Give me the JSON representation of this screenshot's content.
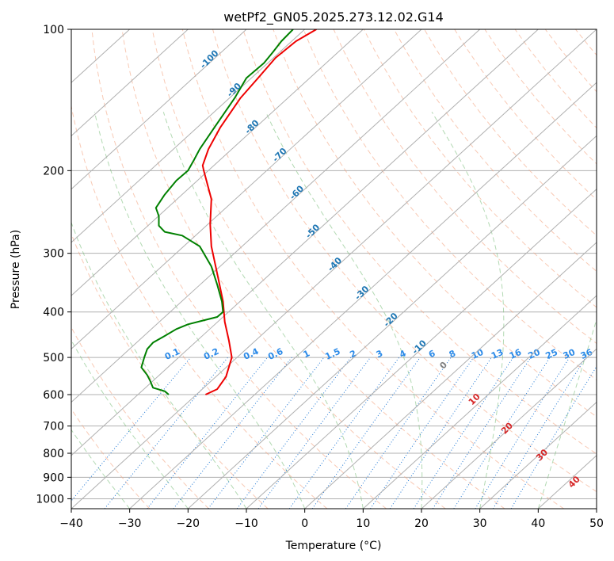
{
  "chart_data": {
    "type": "line",
    "title": "wetPf2_GN05.2025.273.12.02.G14",
    "xlabel": "Temperature (°C)",
    "ylabel": "Pressure (hPa)",
    "xlim": [
      -40,
      50
    ],
    "ylim": [
      1050,
      100
    ],
    "x_ticks": [
      -40,
      -30,
      -20,
      -10,
      0,
      10,
      20,
      30,
      40,
      50
    ],
    "x_tick_labels": [
      "−40",
      "−30",
      "−20",
      "−10",
      "0",
      "10",
      "20",
      "30",
      "40",
      "50"
    ],
    "y_ticks": [
      1000,
      900,
      800,
      700,
      600,
      500,
      400,
      300,
      200,
      100
    ],
    "y_tick_labels": [
      "1000",
      "900",
      "800",
      "700",
      "600",
      "500",
      "400",
      "300",
      "200",
      "100"
    ],
    "grid": true,
    "skew_temperature": [
      -60,
      -50,
      -40,
      -30,
      -20,
      -10,
      0,
      10,
      20,
      30,
      40,
      50
    ],
    "series": [
      {
        "name": "Temperature",
        "color": "#ee0000",
        "points": [
          [
            -17,
            600
          ],
          [
            -15,
            584
          ],
          [
            -13.5,
            550
          ],
          [
            -12.5,
            500
          ],
          [
            -13,
            460
          ],
          [
            -13.7,
            420
          ],
          [
            -14,
            380
          ],
          [
            -14.8,
            340
          ],
          [
            -16,
            290
          ],
          [
            -16.2,
            260
          ],
          [
            -16,
            230
          ],
          [
            -17.3,
            200
          ],
          [
            -17.5,
            195
          ],
          [
            -16.5,
            180
          ],
          [
            -14.5,
            162
          ],
          [
            -11,
            140
          ],
          [
            -8,
            127
          ],
          [
            -5,
            115
          ],
          [
            -1.5,
            106
          ],
          [
            2,
            100
          ]
        ]
      },
      {
        "name": "Dewpoint",
        "color": "#008000",
        "points": [
          [
            -23.3,
            600
          ],
          [
            -24,
            590
          ],
          [
            -26,
            580
          ],
          [
            -26.5,
            560
          ],
          [
            -27,
            545
          ],
          [
            -28,
            525
          ],
          [
            -27.5,
            500
          ],
          [
            -27,
            480
          ],
          [
            -26,
            465
          ],
          [
            -24,
            450
          ],
          [
            -22,
            435
          ],
          [
            -20,
            425
          ],
          [
            -15,
            410
          ],
          [
            -14,
            400
          ],
          [
            -14.2,
            380
          ],
          [
            -15,
            350
          ],
          [
            -16,
            320
          ],
          [
            -18,
            290
          ],
          [
            -21,
            275
          ],
          [
            -24,
            270
          ],
          [
            -25,
            262
          ],
          [
            -25,
            250
          ],
          [
            -25.5,
            240
          ],
          [
            -24,
            225
          ],
          [
            -22,
            210
          ],
          [
            -20,
            200
          ],
          [
            -19,
            190
          ],
          [
            -18,
            180
          ],
          [
            -15.5,
            162
          ],
          [
            -12,
            140
          ],
          [
            -10,
            127
          ],
          [
            -7,
            118
          ],
          [
            -5.5,
            112
          ],
          [
            -4,
            106
          ],
          [
            -2,
            100
          ]
        ]
      }
    ],
    "isotherm_labels": [
      {
        "text": "-100",
        "t": -100,
        "p": 117
      },
      {
        "text": "-90",
        "t": -90,
        "p": 136
      },
      {
        "text": "-80",
        "t": -80,
        "p": 163
      },
      {
        "text": "-70",
        "t": -70,
        "p": 187
      },
      {
        "text": "-60",
        "t": -60,
        "p": 225
      },
      {
        "text": "-50",
        "t": -50,
        "p": 272
      },
      {
        "text": "-40",
        "t": -40,
        "p": 320
      },
      {
        "text": "-30",
        "t": -30,
        "p": 368
      },
      {
        "text": "-20",
        "t": -20,
        "p": 420
      },
      {
        "text": "-10",
        "t": -10,
        "p": 480
      }
    ],
    "mixing_ratio_labels": [
      "0.1",
      "0.2",
      "0.4",
      "0.6",
      "1",
      "1.5",
      "2",
      "3",
      "4",
      "6",
      "8",
      "10",
      "13",
      "16",
      "20",
      "25",
      "30",
      "36"
    ],
    "mixing_ratio_label_x": [
      -22.5,
      -15.8,
      -9,
      -4.8,
      0.5,
      5,
      8.5,
      13,
      17,
      22,
      25.5,
      29.8,
      33.2,
      36.3,
      39.5,
      42.5,
      45.5,
      48.5
    ],
    "theta_e_labels": [
      {
        "text": "0",
        "x": 24.1,
        "p": 525
      },
      {
        "text": "10",
        "x": 29.4,
        "p": 620
      },
      {
        "text": "20",
        "x": 35,
        "p": 715
      },
      {
        "text": "30",
        "x": 41,
        "p": 815
      },
      {
        "text": "40",
        "x": 46.5,
        "p": 930
      }
    ]
  }
}
